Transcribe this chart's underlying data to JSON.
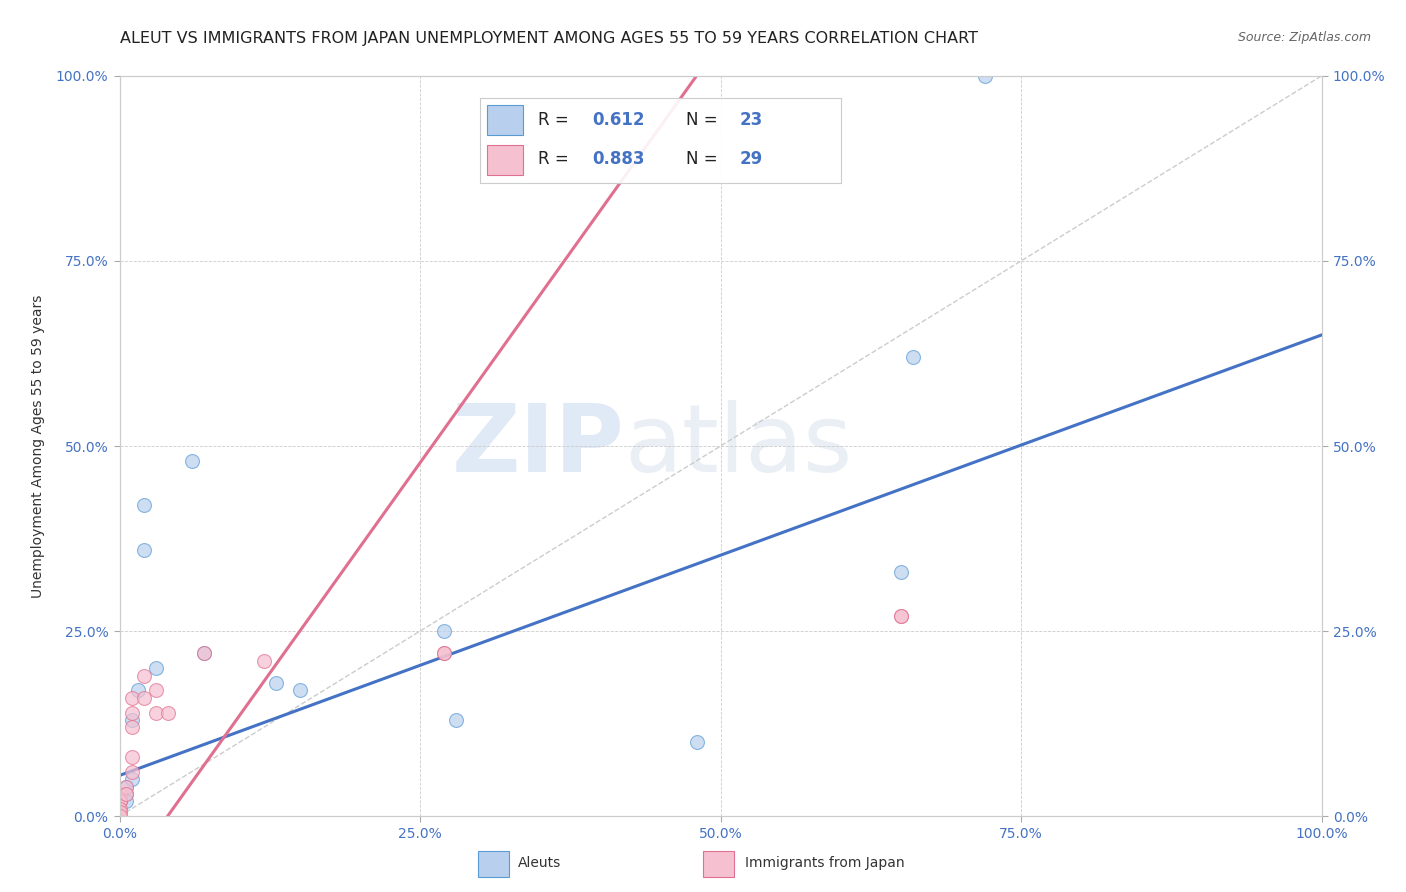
{
  "title": "ALEUT VS IMMIGRANTS FROM JAPAN UNEMPLOYMENT AMONG AGES 55 TO 59 YEARS CORRELATION CHART",
  "source": "Source: ZipAtlas.com",
  "ylabel": "Unemployment Among Ages 55 to 59 years",
  "watermark_zip": "ZIP",
  "watermark_atlas": "atlas",
  "xlim": [
    0.0,
    1.0
  ],
  "ylim": [
    0.0,
    1.0
  ],
  "tick_vals": [
    0.0,
    0.25,
    0.5,
    0.75,
    1.0
  ],
  "tick_labels": [
    "0.0%",
    "25.0%",
    "50.0%",
    "75.0%",
    "100.0%"
  ],
  "right_tick_labels": [
    "100.0%",
    "75.0%",
    "50.0%",
    "25.0%",
    "0.0%"
  ],
  "aleuts_color": "#b8d0ed",
  "japan_color": "#f5c0d0",
  "aleuts_edge_color": "#5b9bd5",
  "japan_edge_color": "#e07090",
  "aleuts_line_color": "#4472c4",
  "japan_line_color": "#e07090",
  "tick_color": "#4472c4",
  "right_tick_color": "#4472c4",
  "aleuts_R": 0.612,
  "aleuts_N": 23,
  "japan_R": 0.883,
  "japan_N": 29,
  "legend_text_color": "#4472c4",
  "legend_label_color": "#222222",
  "aleuts_x": [
    0.005,
    0.005,
    0.005,
    0.01,
    0.01,
    0.015,
    0.02,
    0.02,
    0.03,
    0.06,
    0.07,
    0.13,
    0.15,
    0.27,
    0.28,
    0.48,
    0.65,
    0.66,
    0.72
  ],
  "aleuts_y": [
    0.04,
    0.03,
    0.02,
    0.13,
    0.05,
    0.17,
    0.42,
    0.36,
    0.2,
    0.48,
    0.22,
    0.18,
    0.17,
    0.25,
    0.13,
    0.1,
    0.33,
    0.62,
    1.0
  ],
  "japan_x": [
    0.0,
    0.0,
    0.0,
    0.0,
    0.0,
    0.0,
    0.005,
    0.005,
    0.01,
    0.01,
    0.01,
    0.01,
    0.01,
    0.02,
    0.02,
    0.03,
    0.03,
    0.04,
    0.07,
    0.12,
    0.27,
    0.27,
    0.65,
    0.65
  ],
  "japan_y": [
    0.03,
    0.02,
    0.02,
    0.01,
    0.005,
    0.0,
    0.04,
    0.03,
    0.16,
    0.14,
    0.12,
    0.08,
    0.06,
    0.19,
    0.16,
    0.17,
    0.14,
    0.14,
    0.22,
    0.21,
    0.22,
    0.22,
    0.27,
    0.27
  ],
  "blue_line_x": [
    0.0,
    1.0
  ],
  "blue_line_y": [
    0.055,
    0.65
  ],
  "pink_line_x": [
    0.04,
    0.48
  ],
  "pink_line_y": [
    0.0,
    1.0
  ],
  "diag_line_color": "#cccccc",
  "grid_color": "#cccccc",
  "background_color": "#ffffff",
  "marker_size": 100,
  "marker_alpha": 0.7,
  "title_fontsize": 11.5,
  "source_fontsize": 9,
  "tick_fontsize": 10,
  "ylabel_fontsize": 10,
  "legend_fontsize": 12
}
